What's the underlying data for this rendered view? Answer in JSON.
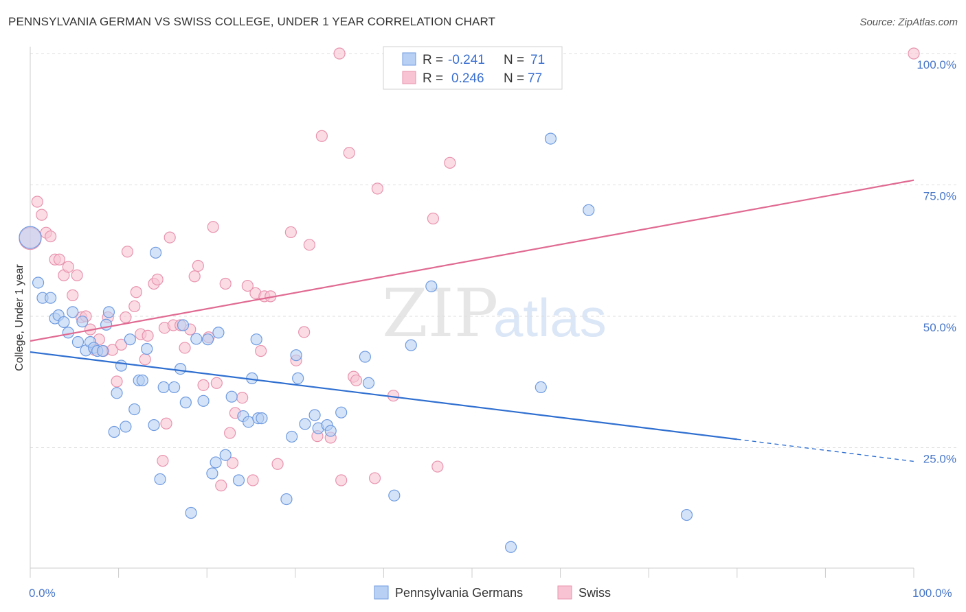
{
  "header": {
    "title": "PENNSYLVANIA GERMAN VS SWISS COLLEGE, UNDER 1 YEAR CORRELATION CHART",
    "source": "Source: ZipAtlas.com"
  },
  "legend": {
    "r_label": "R =",
    "n_label": "N =",
    "rows": [
      {
        "r": "-0.241",
        "n": "71"
      },
      {
        "r": "0.246",
        "n": "77"
      }
    ]
  },
  "bottom_legend": [
    {
      "label": "Pennsylvania Germans"
    },
    {
      "label": "Swiss"
    }
  ],
  "watermark": {
    "zip": "ZIP",
    "atlas": "atlas"
  },
  "colors": {
    "blue_fill": "#b8d0f4",
    "blue_stroke": "#6f9be0",
    "blue_line": "#2f6fd0",
    "pink_fill": "#f8c4d4",
    "pink_stroke": "#e893ae",
    "pink_line": "#e06a92",
    "grid": "#dddddd",
    "tick_text": "#4a78c8"
  },
  "chart_data": {
    "type": "scatter",
    "title": "PENNSYLVANIA GERMAN VS SWISS COLLEGE, UNDER 1 YEAR CORRELATION CHART",
    "xlabel": "",
    "ylabel": "College, Under 1 year",
    "xlim": [
      0,
      100
    ],
    "ylim": [
      0,
      100
    ],
    "x_tick_labels": [
      "0.0%",
      "100.0%"
    ],
    "y_ticks": [
      25,
      50,
      75,
      100
    ],
    "y_tick_labels": [
      "25.0%",
      "50.0%",
      "75.0%",
      "100.0%"
    ],
    "grid": true,
    "legend_position": "top-center",
    "series": [
      {
        "name": "Pennsylvania Germans",
        "r": -0.241,
        "n": 71,
        "trend": {
          "x0": 0,
          "y0": 43.2,
          "x1": 80,
          "y1": 26.6,
          "dash_to_x": 100,
          "dash_to_y": 22.4
        },
        "points": [
          [
            0.0,
            65.0
          ],
          [
            0.9,
            56.4
          ],
          [
            1.4,
            53.5
          ],
          [
            2.3,
            53.5
          ],
          [
            2.8,
            49.6
          ],
          [
            3.2,
            50.2
          ],
          [
            3.8,
            48.9
          ],
          [
            4.3,
            46.9
          ],
          [
            4.8,
            50.8
          ],
          [
            5.4,
            45.1
          ],
          [
            5.9,
            49.0
          ],
          [
            6.3,
            43.5
          ],
          [
            6.8,
            45.1
          ],
          [
            7.2,
            44.0
          ],
          [
            7.6,
            43.4
          ],
          [
            8.2,
            43.4
          ],
          [
            8.6,
            48.4
          ],
          [
            8.9,
            50.8
          ],
          [
            9.5,
            28.0
          ],
          [
            9.8,
            35.4
          ],
          [
            10.3,
            40.6
          ],
          [
            10.8,
            29.0
          ],
          [
            11.3,
            45.6
          ],
          [
            11.8,
            32.3
          ],
          [
            12.3,
            37.8
          ],
          [
            12.7,
            37.8
          ],
          [
            13.2,
            43.8
          ],
          [
            14.0,
            29.3
          ],
          [
            14.2,
            62.1
          ],
          [
            14.7,
            19.0
          ],
          [
            15.1,
            36.5
          ],
          [
            16.3,
            36.5
          ],
          [
            17.0,
            40.0
          ],
          [
            17.3,
            48.3
          ],
          [
            17.6,
            33.6
          ],
          [
            18.2,
            12.6
          ],
          [
            18.8,
            45.7
          ],
          [
            19.6,
            33.9
          ],
          [
            20.1,
            45.6
          ],
          [
            20.6,
            20.1
          ],
          [
            21.0,
            22.2
          ],
          [
            21.3,
            46.9
          ],
          [
            22.1,
            23.6
          ],
          [
            22.8,
            34.7
          ],
          [
            23.6,
            18.8
          ],
          [
            24.1,
            31.0
          ],
          [
            24.7,
            29.9
          ],
          [
            25.1,
            38.2
          ],
          [
            25.6,
            45.6
          ],
          [
            25.8,
            30.6
          ],
          [
            26.2,
            30.6
          ],
          [
            29.0,
            15.2
          ],
          [
            29.6,
            27.1
          ],
          [
            30.1,
            42.6
          ],
          [
            30.3,
            38.2
          ],
          [
            31.1,
            29.5
          ],
          [
            32.2,
            31.2
          ],
          [
            32.6,
            28.7
          ],
          [
            33.6,
            29.3
          ],
          [
            34.0,
            28.2
          ],
          [
            35.2,
            31.7
          ],
          [
            37.9,
            42.3
          ],
          [
            38.3,
            37.3
          ],
          [
            41.2,
            15.9
          ],
          [
            43.1,
            44.5
          ],
          [
            45.4,
            55.7
          ],
          [
            54.4,
            6.1
          ],
          [
            57.8,
            36.5
          ],
          [
            58.9,
            83.8
          ],
          [
            63.2,
            70.2
          ],
          [
            74.3,
            12.2
          ]
        ]
      },
      {
        "name": "Swiss",
        "r": 0.246,
        "n": 77,
        "trend": {
          "x0": 0,
          "y0": 45.3,
          "x1": 100,
          "y1": 75.9
        },
        "points": [
          [
            0.0,
            64.8
          ],
          [
            0.8,
            71.8
          ],
          [
            1.3,
            69.3
          ],
          [
            1.8,
            65.9
          ],
          [
            2.3,
            65.2
          ],
          [
            2.8,
            60.8
          ],
          [
            3.3,
            60.8
          ],
          [
            3.8,
            57.8
          ],
          [
            4.3,
            59.4
          ],
          [
            4.8,
            54.0
          ],
          [
            5.3,
            57.8
          ],
          [
            5.8,
            49.8
          ],
          [
            6.3,
            50.0
          ],
          [
            6.8,
            47.5
          ],
          [
            7.3,
            43.6
          ],
          [
            7.8,
            45.6
          ],
          [
            8.3,
            43.4
          ],
          [
            8.8,
            49.8
          ],
          [
            9.3,
            43.6
          ],
          [
            9.8,
            37.6
          ],
          [
            10.3,
            44.6
          ],
          [
            10.8,
            49.8
          ],
          [
            11.0,
            62.3
          ],
          [
            11.8,
            51.9
          ],
          [
            12.0,
            54.6
          ],
          [
            12.5,
            46.6
          ],
          [
            13.0,
            41.8
          ],
          [
            13.3,
            46.3
          ],
          [
            14.0,
            56.2
          ],
          [
            14.4,
            57.0
          ],
          [
            15.0,
            22.5
          ],
          [
            15.2,
            47.8
          ],
          [
            15.4,
            29.6
          ],
          [
            15.8,
            65.0
          ],
          [
            16.2,
            48.3
          ],
          [
            17.0,
            48.3
          ],
          [
            17.5,
            44.0
          ],
          [
            18.1,
            47.5
          ],
          [
            18.6,
            57.6
          ],
          [
            19.0,
            59.6
          ],
          [
            19.6,
            36.9
          ],
          [
            20.2,
            46.0
          ],
          [
            20.7,
            67.0
          ],
          [
            21.1,
            37.3
          ],
          [
            21.6,
            17.8
          ],
          [
            22.1,
            56.2
          ],
          [
            22.6,
            27.8
          ],
          [
            22.9,
            22.1
          ],
          [
            23.2,
            31.6
          ],
          [
            24.0,
            34.5
          ],
          [
            24.6,
            55.8
          ],
          [
            25.2,
            18.8
          ],
          [
            25.5,
            54.4
          ],
          [
            26.1,
            43.4
          ],
          [
            26.5,
            53.8
          ],
          [
            27.2,
            53.8
          ],
          [
            28.0,
            21.9
          ],
          [
            29.5,
            66.0
          ],
          [
            30.1,
            41.6
          ],
          [
            31.0,
            47.0
          ],
          [
            31.6,
            63.6
          ],
          [
            32.5,
            27.2
          ],
          [
            33.0,
            84.3
          ],
          [
            34.0,
            26.9
          ],
          [
            35.0,
            100.0
          ],
          [
            35.2,
            18.8
          ],
          [
            36.1,
            81.1
          ],
          [
            36.6,
            38.5
          ],
          [
            36.9,
            37.8
          ],
          [
            39.3,
            74.3
          ],
          [
            39.0,
            19.2
          ],
          [
            41.1,
            34.9
          ],
          [
            45.6,
            68.6
          ],
          [
            46.1,
            21.4
          ],
          [
            47.5,
            79.2
          ],
          [
            49.5,
            100.0
          ],
          [
            100.0,
            100.0
          ]
        ]
      }
    ]
  }
}
